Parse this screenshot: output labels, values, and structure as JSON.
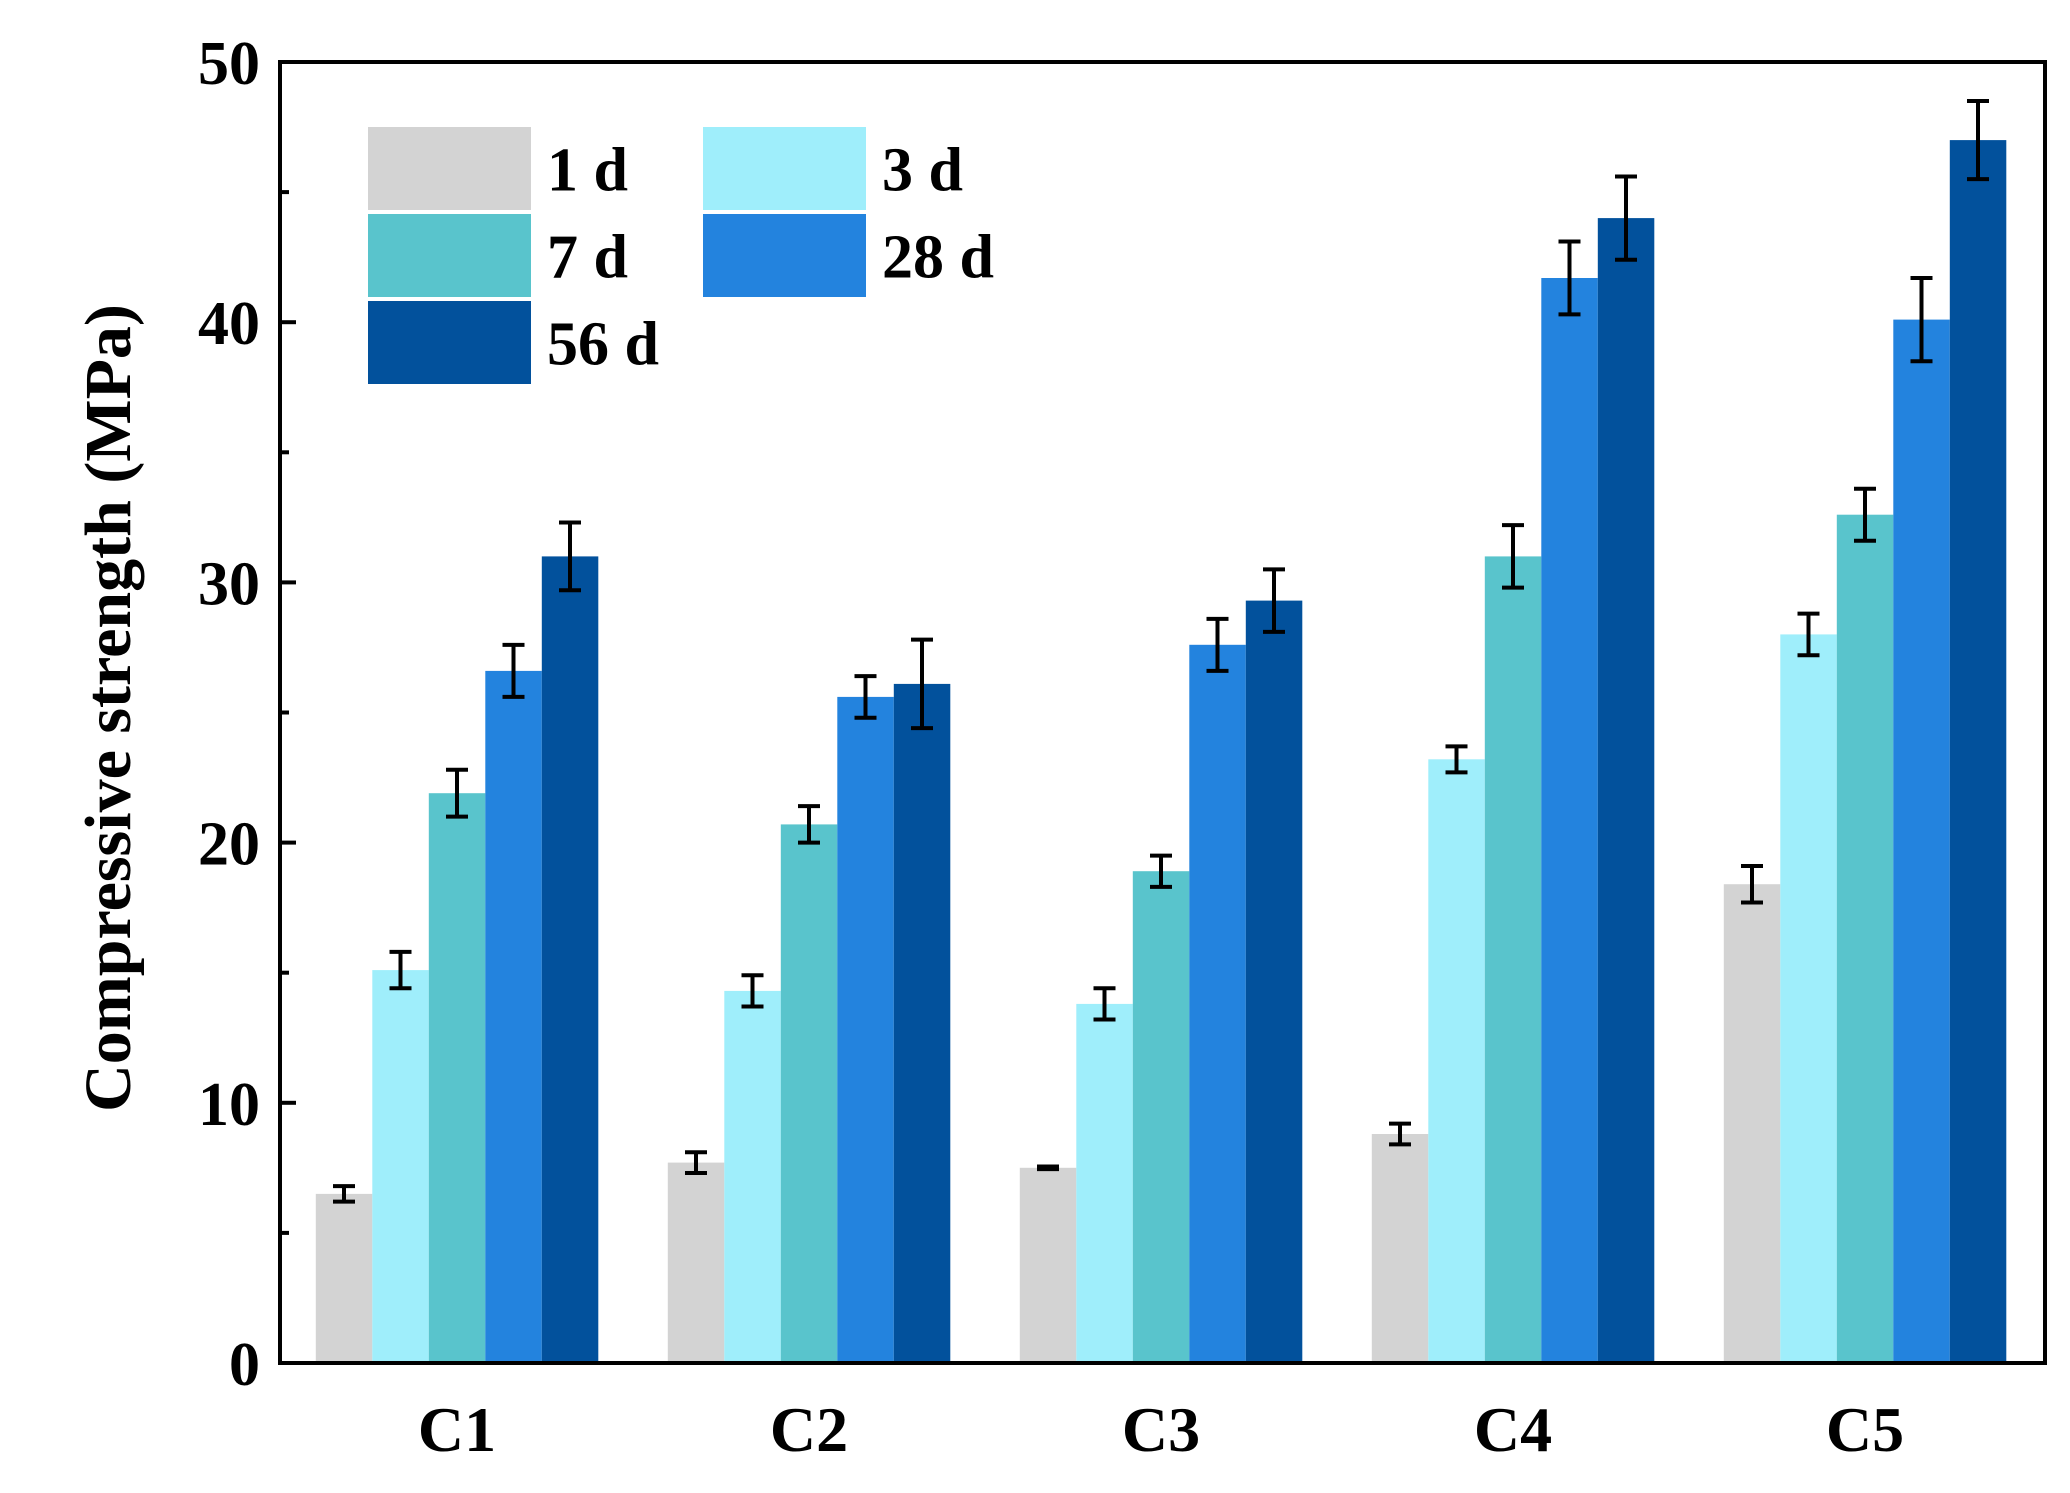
{
  "chart_data": {
    "type": "bar",
    "title": "",
    "xlabel": "",
    "ylabel": "Compressive strength (MPa)",
    "ylim": [
      0,
      50
    ],
    "yticks": [
      0,
      10,
      20,
      30,
      40,
      50
    ],
    "ytick_labels": [
      "0",
      "10",
      "20",
      "30",
      "40",
      "50"
    ],
    "minor_yticks": [
      5,
      15,
      25,
      35,
      45
    ],
    "categories": [
      "C1",
      "C2",
      "C3",
      "C4",
      "C5"
    ],
    "grid": false,
    "legend_position": "top-left",
    "series": [
      {
        "name": "1 d",
        "color": "#d3d3d3",
        "values": [
          6.5,
          7.7,
          7.5,
          8.8,
          18.4
        ],
        "errors": [
          0.3,
          0.4,
          0.05,
          0.4,
          0.7
        ]
      },
      {
        "name": "3 d",
        "color": "#9feefb",
        "values": [
          15.1,
          14.3,
          13.8,
          23.2,
          28.0
        ],
        "errors": [
          0.7,
          0.6,
          0.6,
          0.5,
          0.8
        ]
      },
      {
        "name": "7 d",
        "color": "#59c4cc",
        "values": [
          21.9,
          20.7,
          18.9,
          31.0,
          32.6
        ],
        "errors": [
          0.9,
          0.7,
          0.6,
          1.2,
          1.0
        ]
      },
      {
        "name": "28 d",
        "color": "#2383de",
        "values": [
          26.6,
          25.6,
          27.6,
          41.7,
          40.1
        ],
        "errors": [
          1.0,
          0.8,
          1.0,
          1.4,
          1.6
        ]
      },
      {
        "name": "56 d",
        "color": "#02519c",
        "values": [
          31.0,
          26.1,
          29.3,
          44.0,
          47.0
        ],
        "errors": [
          1.3,
          1.7,
          1.2,
          1.6,
          1.5
        ]
      }
    ]
  }
}
